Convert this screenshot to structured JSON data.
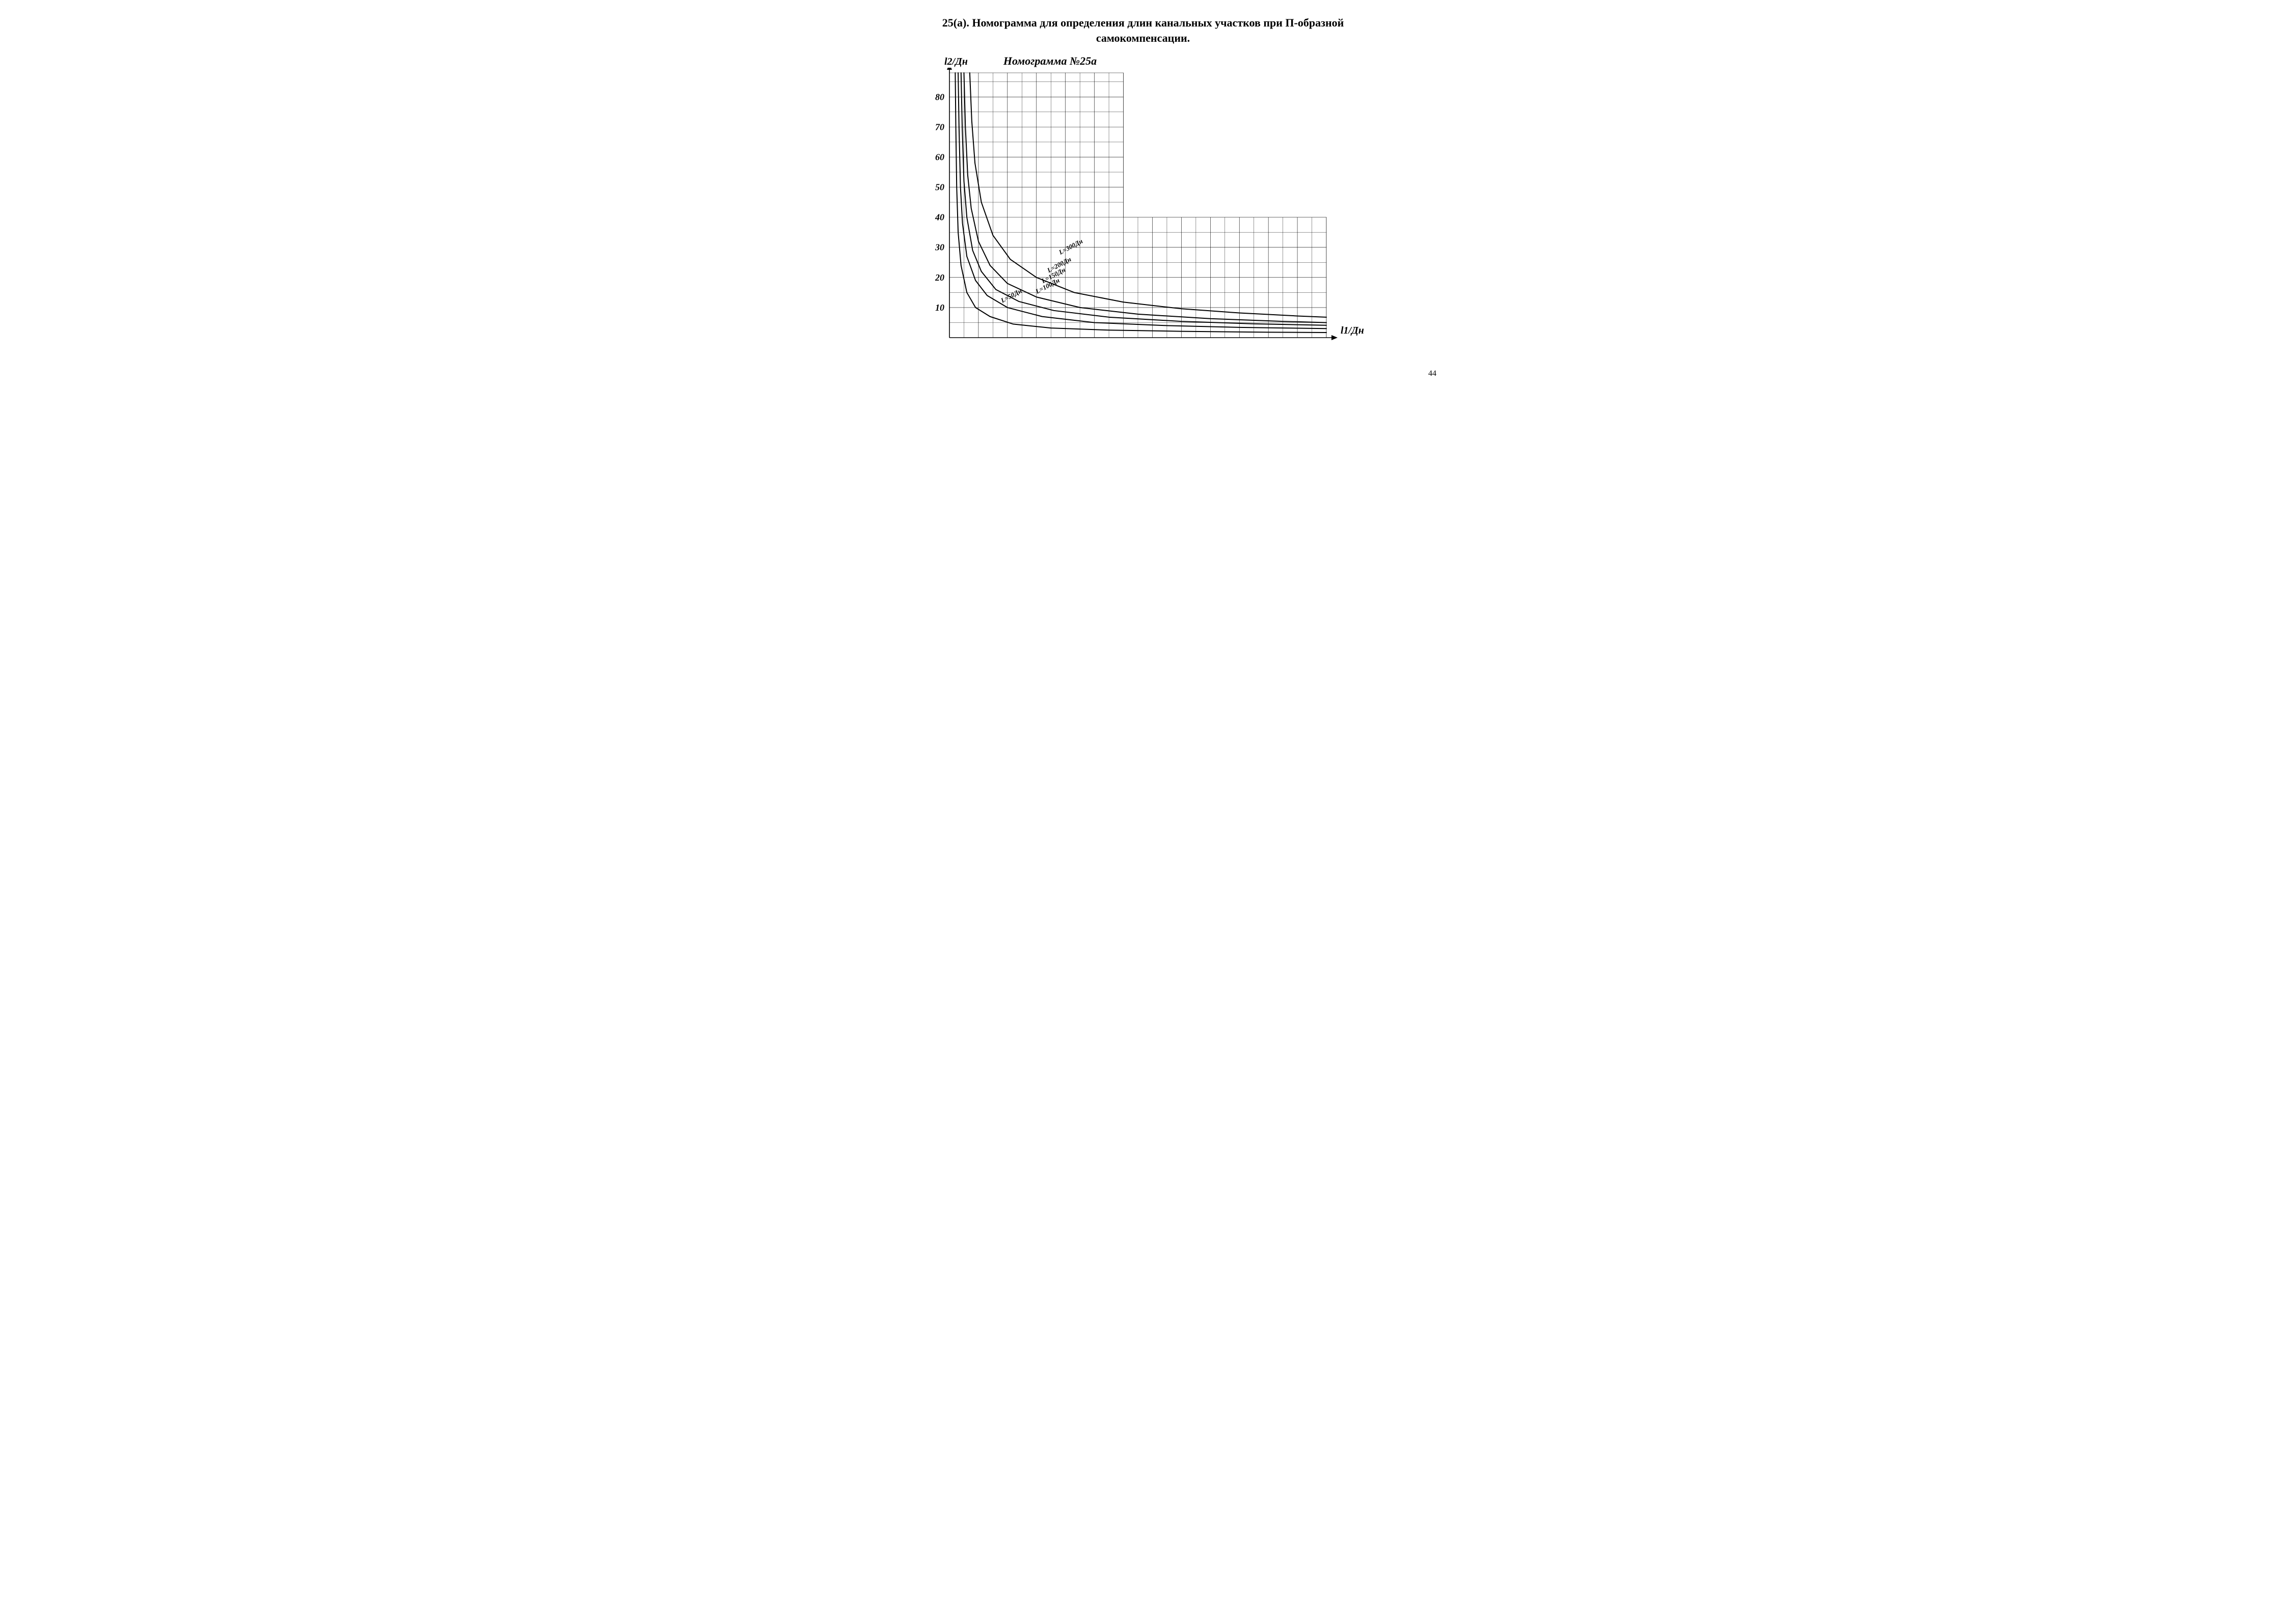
{
  "page_number": "44",
  "heading_line1": "25(а). Номограмма для определения длин канальных участков при П-образной",
  "heading_line2": "самокомпенсации.",
  "chart": {
    "type": "line",
    "title": "Номограмма №25a",
    "xlabel": "l1/Дн",
    "ylabel": "l2/Дн",
    "xlim": [
      0,
      130
    ],
    "ylim": [
      0,
      88
    ],
    "x_major_step": 10,
    "x_minor_step": 5,
    "y_major_step": 10,
    "y_minor_step": 5,
    "y_tick_labels": [
      "10",
      "20",
      "30",
      "40",
      "50",
      "60",
      "70",
      "80"
    ],
    "y_tick_values": [
      10,
      20,
      30,
      40,
      50,
      60,
      70,
      80
    ],
    "y_label_fontsize": 18,
    "tick_fontsize": 18,
    "background_color": "#ffffff",
    "grid_color": "#000000",
    "grid_stroke_width": 0.6,
    "axis_stroke_width": 1.6,
    "curve_stroke_width": 2.0,
    "curve_color": "#000000",
    "staircase_region": {
      "x_break": 60,
      "y_break": 40
    },
    "series": [
      {
        "label": "L=50Дн",
        "label_xy": [
          18,
          12
        ],
        "points": [
          [
            2,
            88
          ],
          [
            2.2,
            70
          ],
          [
            2.5,
            50
          ],
          [
            3,
            35
          ],
          [
            4,
            24
          ],
          [
            6,
            15
          ],
          [
            9,
            10
          ],
          [
            14,
            7
          ],
          [
            22,
            4.5
          ],
          [
            35,
            3.2
          ],
          [
            55,
            2.5
          ],
          [
            80,
            2.1
          ],
          [
            110,
            1.8
          ],
          [
            130,
            1.7
          ]
        ]
      },
      {
        "label": "L=100Дн",
        "label_xy": [
          30,
          15
        ],
        "points": [
          [
            3,
            88
          ],
          [
            3.3,
            70
          ],
          [
            3.8,
            50
          ],
          [
            4.5,
            38
          ],
          [
            6,
            27
          ],
          [
            9,
            19
          ],
          [
            13,
            14
          ],
          [
            20,
            10
          ],
          [
            32,
            7
          ],
          [
            50,
            5
          ],
          [
            75,
            4
          ],
          [
            100,
            3.4
          ],
          [
            130,
            3.0
          ]
        ]
      },
      {
        "label": "L=150Дн",
        "label_xy": [
          32,
          18.5
        ],
        "points": [
          [
            4,
            88
          ],
          [
            4.4,
            70
          ],
          [
            5,
            52
          ],
          [
            6,
            40
          ],
          [
            8,
            29
          ],
          [
            11,
            22
          ],
          [
            16,
            16
          ],
          [
            24,
            12
          ],
          [
            36,
            9
          ],
          [
            55,
            6.8
          ],
          [
            80,
            5.4
          ],
          [
            105,
            4.6
          ],
          [
            130,
            4.1
          ]
        ]
      },
      {
        "label": "L=200Дн",
        "label_xy": [
          34,
          22
        ],
        "points": [
          [
            5,
            88
          ],
          [
            5.5,
            70
          ],
          [
            6.3,
            54
          ],
          [
            7.5,
            43
          ],
          [
            10,
            32
          ],
          [
            14,
            24
          ],
          [
            20,
            18
          ],
          [
            30,
            13.5
          ],
          [
            45,
            10
          ],
          [
            65,
            7.8
          ],
          [
            90,
            6.3
          ],
          [
            115,
            5.4
          ],
          [
            130,
            5.0
          ]
        ]
      },
      {
        "label": "L=300Дн",
        "label_xy": [
          38,
          28
        ],
        "points": [
          [
            7,
            88
          ],
          [
            7.7,
            72
          ],
          [
            8.8,
            58
          ],
          [
            11,
            45
          ],
          [
            15,
            34
          ],
          [
            21,
            26
          ],
          [
            30,
            20
          ],
          [
            43,
            15
          ],
          [
            60,
            11.8
          ],
          [
            80,
            9.6
          ],
          [
            100,
            8.2
          ],
          [
            120,
            7.2
          ],
          [
            130,
            6.8
          ]
        ]
      }
    ],
    "curve_label_fontsize": 13,
    "curve_label_rotation_deg": -28
  }
}
